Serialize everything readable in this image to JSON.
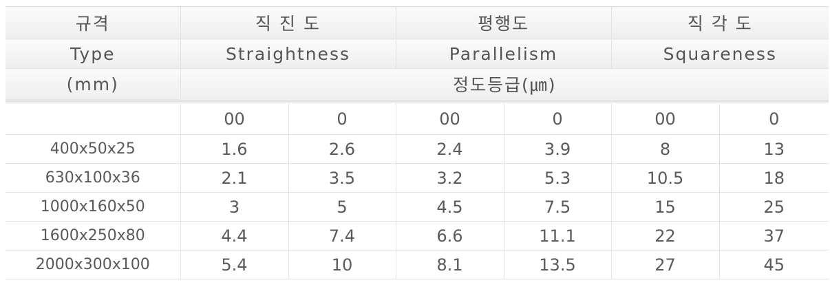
{
  "header": {
    "type_ko": "규격",
    "type_en": "Type",
    "unit_mm": "(mm)",
    "straightness_ko": "직 진 도",
    "straightness_en": "Straightness",
    "parallelism_ko": "평행도",
    "parallelism_en": "Parallelism",
    "squareness_ko": "직 각 도",
    "squareness_en": "Squareness",
    "accuracy_grade": "정도등급(㎛)"
  },
  "grades": [
    "00",
    "0",
    "00",
    "0",
    "00",
    "0"
  ],
  "rows": [
    {
      "type": "400x50x25",
      "values": [
        "1.6",
        "2.6",
        "2.4",
        "3.9",
        "8",
        "13"
      ]
    },
    {
      "type": "630x100x36",
      "values": [
        "2.1",
        "3.5",
        "3.2",
        "5.3",
        "10.5",
        "18"
      ]
    },
    {
      "type": "1000x160x50",
      "values": [
        "3",
        "5",
        "4.5",
        "7.5",
        "15",
        "25"
      ]
    },
    {
      "type": "1600x250x80",
      "values": [
        "4.4",
        "7.4",
        "6.6",
        "11.1",
        "22",
        "37"
      ]
    },
    {
      "type": "2000x300x100",
      "values": [
        "5.4",
        "10",
        "8.1",
        "13.5",
        "27",
        "45"
      ]
    }
  ]
}
